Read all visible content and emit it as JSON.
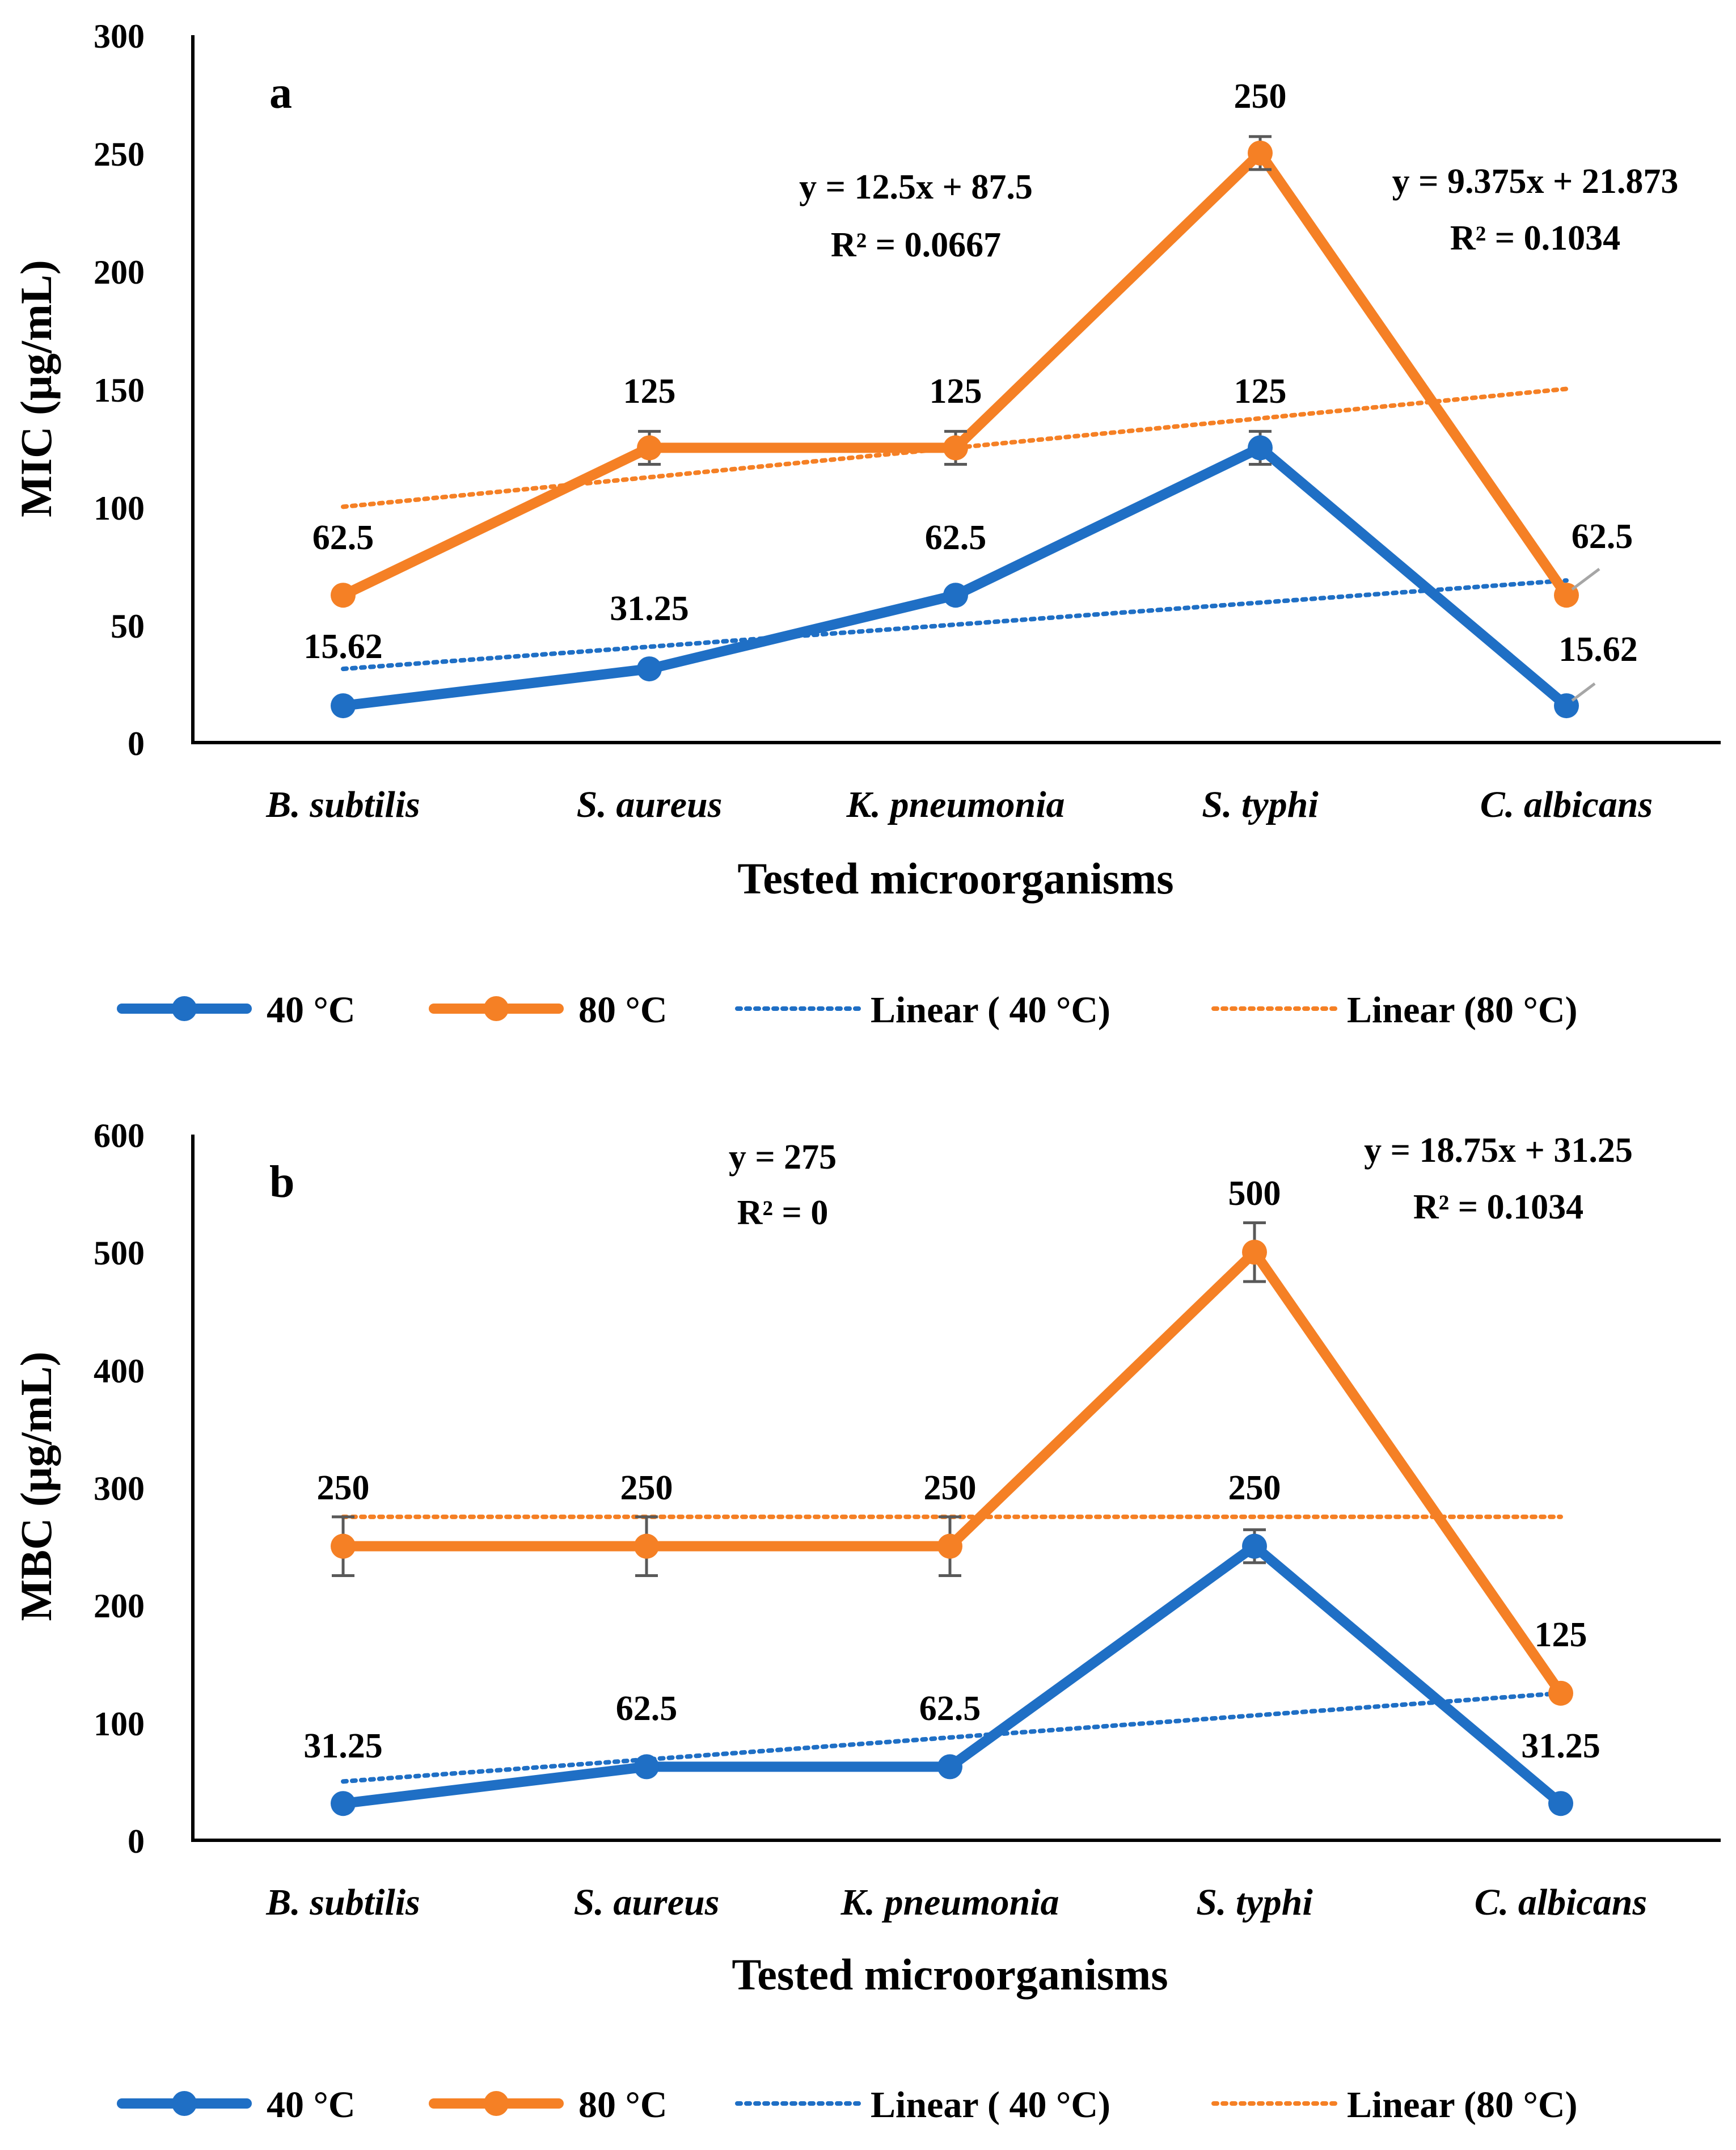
{
  "colors": {
    "series_40": "#1F6FC5",
    "series_80": "#F58025",
    "trend_40": "#1F6FC5",
    "trend_80": "#F58025",
    "error_bar": "#595959",
    "leader": "#A6A6A6"
  },
  "legend": {
    "s40": "40 °C",
    "s80": "80 °C",
    "t40": "Linear ( 40 °C)",
    "t80": "Linear (80 °C)"
  },
  "chart_data": [
    {
      "type": "line",
      "panel": "a",
      "ylabel": "MIC (μg/mL)",
      "xlabel": "Tested microorganisms",
      "ylim": [
        0,
        300
      ],
      "yticks": [
        "0",
        "50",
        "100",
        "150",
        "200",
        "250",
        "300"
      ],
      "ytick_values": [
        0,
        50,
        100,
        150,
        200,
        250,
        300
      ],
      "categories": [
        "B. subtilis",
        "S. aureus",
        "K. pneumonia",
        "S. typhi",
        "C. albicans"
      ],
      "series": [
        {
          "name": "40 °C",
          "values": [
            15.62,
            31.25,
            62.5,
            125,
            15.62
          ],
          "labels": [
            "15.62",
            "31.25",
            "62.5",
            "125",
            "15.62"
          ],
          "error_bars": [
            false,
            false,
            false,
            true,
            false
          ],
          "error": 7
        },
        {
          "name": "80 °C",
          "values": [
            62.5,
            125,
            125,
            250,
            62.5
          ],
          "labels": [
            "62.5",
            "125",
            "125",
            "250",
            "62.5"
          ],
          "error_bars": [
            false,
            true,
            true,
            true,
            false
          ],
          "error": 7
        }
      ],
      "trendlines": [
        {
          "name": "Linear ( 40 °C)",
          "start": 31.25,
          "end": 68.75
        },
        {
          "name": "Linear (80 °C)",
          "start": 100,
          "end": 150
        }
      ],
      "equations": [
        {
          "line1": "y = 12.5x + 87.5",
          "line2": "R² = 0.0667"
        },
        {
          "line1": "y = 9.375x + 21.873",
          "line2": "R² = 0.1034"
        }
      ]
    },
    {
      "type": "line",
      "panel": "b",
      "ylabel": "MBC (μg/mL)",
      "xlabel": "Tested microorganisms",
      "ylim": [
        0,
        600
      ],
      "yticks": [
        "0",
        "100",
        "200",
        "300",
        "400",
        "500",
        "600"
      ],
      "ytick_values": [
        0,
        100,
        200,
        300,
        400,
        500,
        600
      ],
      "categories": [
        "B. subtilis",
        "S. aureus",
        "K. pneumonia",
        "S. typhi",
        "C. albicans"
      ],
      "series": [
        {
          "name": "40 °C",
          "values": [
            31.25,
            62.5,
            62.5,
            250,
            31.25
          ],
          "labels": [
            "31.25",
            "62.5",
            "62.5",
            "250",
            "31.25"
          ],
          "error_bars": [
            false,
            false,
            false,
            true,
            false
          ],
          "error": 14
        },
        {
          "name": "80 °C",
          "values": [
            250,
            250,
            250,
            500,
            125
          ],
          "labels": [
            "250",
            "250",
            "250",
            "500",
            "125"
          ],
          "error_bars": [
            true,
            true,
            true,
            true,
            false
          ],
          "error": 25
        }
      ],
      "trendlines": [
        {
          "name": "Linear ( 40 °C)",
          "start": 50,
          "end": 125
        },
        {
          "name": "Linear (80 °C)",
          "start": 275,
          "end": 275
        }
      ],
      "equations": [
        {
          "line1": "y = 275",
          "line2": "R² = 0"
        },
        {
          "line1": "y = 18.75x + 31.25",
          "line2": "R² = 0.1034"
        }
      ]
    }
  ]
}
